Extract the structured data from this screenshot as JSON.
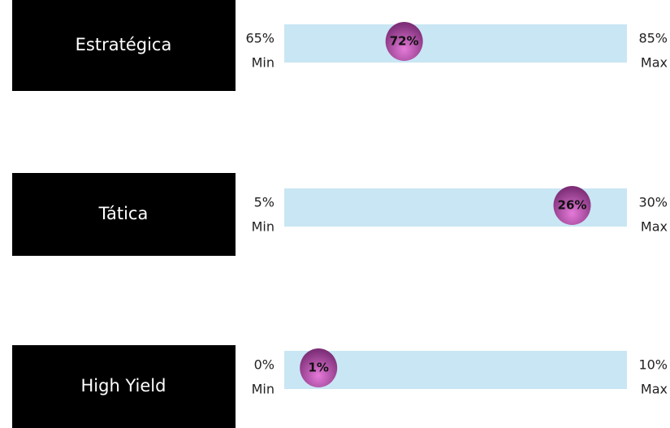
{
  "chart_data": [
    {
      "type": "range",
      "title": "Estratégica",
      "xlim": [
        65,
        85
      ],
      "xticks": [
        {
          "value": 65,
          "label": "65%"
        },
        {
          "value": 85,
          "label": "85%"
        }
      ],
      "min_label": "Min",
      "max_label": "Max",
      "values": [
        72
      ],
      "value_labels": [
        "72%"
      ],
      "color": "#c9e6f4",
      "marker_color": "#c458b8"
    },
    {
      "type": "range",
      "title": "Tática",
      "xlim": [
        5,
        30
      ],
      "xticks": [
        {
          "value": 5,
          "label": "5%"
        },
        {
          "value": 30,
          "label": "30%"
        }
      ],
      "min_label": "Min",
      "max_label": "Max",
      "values": [
        26
      ],
      "value_labels": [
        "26%"
      ],
      "color": "#c9e6f4",
      "marker_color": "#c458b8"
    },
    {
      "type": "range",
      "title": "High Yield",
      "xlim": [
        0,
        10
      ],
      "xticks": [
        {
          "value": 0,
          "label": "0%"
        },
        {
          "value": 10,
          "label": "10%"
        }
      ],
      "min_label": "Min",
      "max_label": "Max",
      "values": [
        1
      ],
      "value_labels": [
        "1%"
      ],
      "color": "#c9e6f4",
      "marker_color": "#c458b8"
    }
  ]
}
